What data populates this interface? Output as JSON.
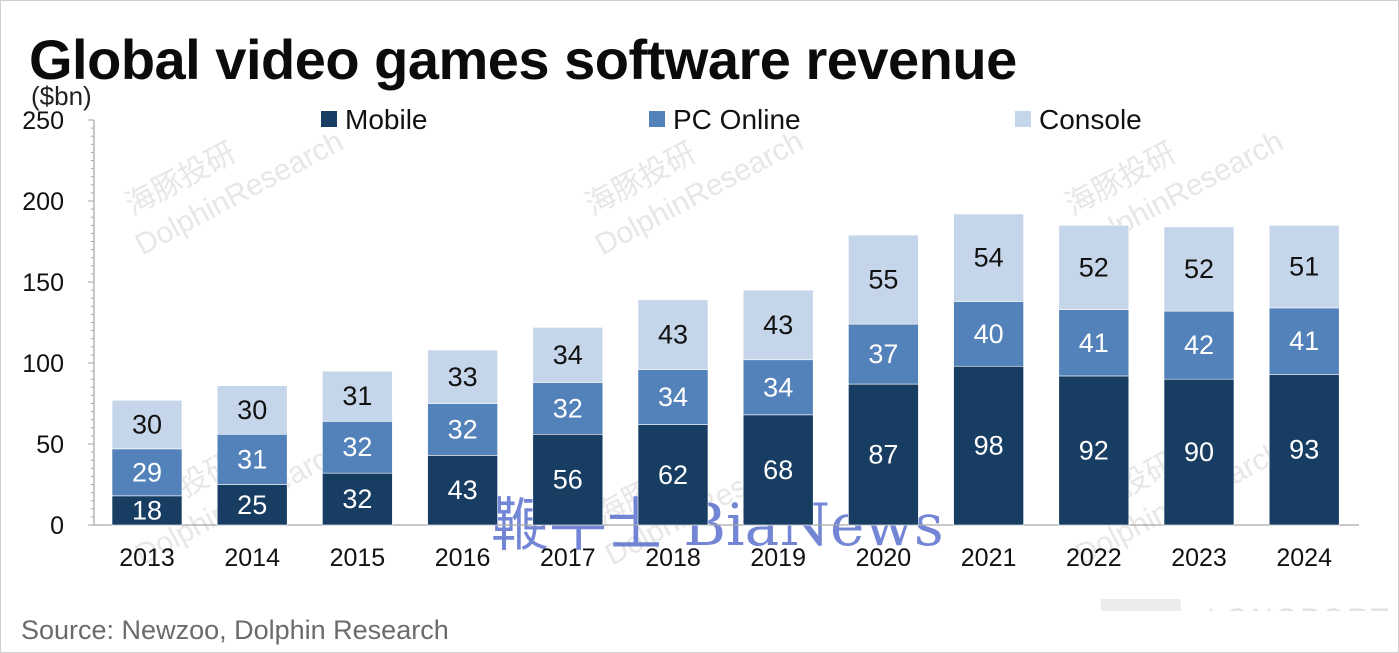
{
  "chart_data": {
    "type": "bar",
    "stacked": true,
    "title": "Global video games software revenue",
    "ylabel": "($bn)",
    "ylim": [
      0,
      250
    ],
    "yticks": [
      0,
      50,
      100,
      150,
      200,
      250
    ],
    "categories": [
      "2013",
      "2014",
      "2015",
      "2016",
      "2017",
      "2018",
      "2019",
      "2020",
      "2021",
      "2022",
      "2023",
      "2024"
    ],
    "series": [
      {
        "name": "Mobile",
        "color": "#173d63",
        "label_color": "#ffffff",
        "values": [
          18,
          25,
          32,
          43,
          56,
          62,
          68,
          87,
          98,
          92,
          90,
          93
        ]
      },
      {
        "name": "PC Online",
        "color": "#5381b9",
        "label_color": "#ffffff",
        "values": [
          29,
          31,
          32,
          32,
          32,
          34,
          34,
          37,
          40,
          41,
          42,
          41
        ]
      },
      {
        "name": "Console",
        "color": "#c6d6ea",
        "label_color": "#111111",
        "values": [
          30,
          30,
          31,
          33,
          34,
          43,
          43,
          55,
          54,
          52,
          52,
          51
        ]
      }
    ],
    "legend_position": "top",
    "grid": false
  },
  "source": "Source: Newzoo, Dolphin Research",
  "watermarks": [
    "海豚投研",
    "DolphinResearch",
    "鞭牛士 BiaNews",
    "LONGPORT"
  ]
}
